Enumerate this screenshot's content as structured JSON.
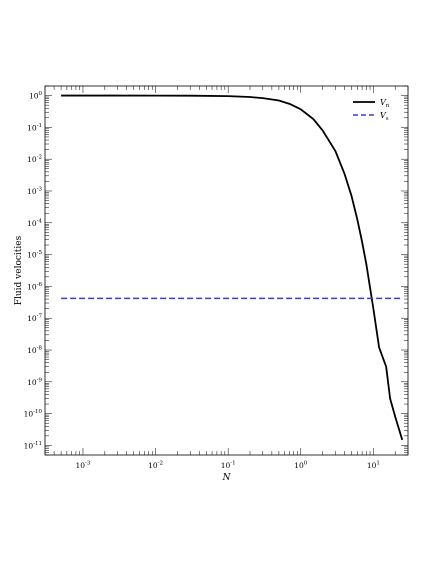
{
  "chart_data": {
    "type": "line",
    "title": "",
    "xlabel": "N",
    "ylabel": "Fluid velocities",
    "xscale": "log",
    "yscale": "log",
    "xlim": [
      0.0003,
      30
    ],
    "ylim": [
      5e-12,
      2
    ],
    "grid": false,
    "legend_position": "top-right",
    "x_ticks": [
      {
        "base": "10",
        "exp": "-3",
        "value": 0.001
      },
      {
        "base": "10",
        "exp": "-2",
        "value": 0.01
      },
      {
        "base": "10",
        "exp": "-1",
        "value": 0.1
      },
      {
        "base": "10",
        "exp": "0",
        "value": 1
      },
      {
        "base": "10",
        "exp": "1",
        "value": 10
      }
    ],
    "y_ticks": [
      {
        "base": "10",
        "exp": "0",
        "value": 1
      },
      {
        "base": "10",
        "exp": "-1",
        "value": 0.1
      },
      {
        "base": "10",
        "exp": "-2",
        "value": 0.01
      },
      {
        "base": "10",
        "exp": "-3",
        "value": 0.001
      },
      {
        "base": "10",
        "exp": "-4",
        "value": 0.0001
      },
      {
        "base": "10",
        "exp": "-5",
        "value": 1e-05
      },
      {
        "base": "10",
        "exp": "-6",
        "value": 1e-06
      },
      {
        "base": "10",
        "exp": "-7",
        "value": 1e-07
      },
      {
        "base": "10",
        "exp": "-8",
        "value": 1e-08
      },
      {
        "base": "10",
        "exp": "-9",
        "value": 1e-09
      },
      {
        "base": "10",
        "exp": "-10",
        "value": 1e-10
      },
      {
        "base": "10",
        "exp": "-11",
        "value": 1e-11
      }
    ],
    "series": [
      {
        "name": "V",
        "subscript": "n",
        "style": "solid",
        "color": "#000000",
        "points": [
          [
            0.0005,
            1.0
          ],
          [
            0.001,
            1.0
          ],
          [
            0.003,
            1.0
          ],
          [
            0.01,
            0.995
          ],
          [
            0.03,
            0.99
          ],
          [
            0.1,
            0.96
          ],
          [
            0.2,
            0.9
          ],
          [
            0.3,
            0.83
          ],
          [
            0.5,
            0.7
          ],
          [
            0.7,
            0.55
          ],
          [
            1.0,
            0.37
          ],
          [
            1.5,
            0.18
          ],
          [
            2.0,
            0.08
          ],
          [
            3.0,
            0.018
          ],
          [
            4.0,
            0.0035
          ],
          [
            5.0,
            0.0007
          ],
          [
            6.0,
            0.00013
          ],
          [
            7.0,
            2.5e-05
          ],
          [
            8.0,
            5e-06
          ],
          [
            10.0,
            2e-07
          ],
          [
            12.0,
            1.2e-08
          ],
          [
            15.0,
            3e-09
          ],
          [
            17.0,
            3e-10
          ],
          [
            20.0,
            8e-11
          ],
          [
            25.0,
            1.5e-11
          ]
        ]
      },
      {
        "name": "V",
        "subscript": "s",
        "style": "dashed",
        "color": "#3a3ae0",
        "points": [
          [
            0.0005,
            4.2e-07
          ],
          [
            25.0,
            4.2e-07
          ]
        ]
      }
    ]
  }
}
